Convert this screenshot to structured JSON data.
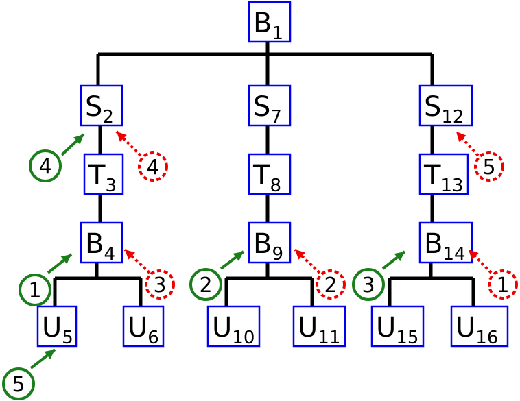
{
  "colors": {
    "node_border": "#0000ee",
    "edge": "#000000",
    "green_marker": "#1a7f1a",
    "red_marker": "#ee0000"
  },
  "nodes": [
    {
      "id": "B1",
      "main": "B",
      "sub": "1"
    },
    {
      "id": "S2",
      "main": "S",
      "sub": "2"
    },
    {
      "id": "S7",
      "main": "S",
      "sub": "7"
    },
    {
      "id": "S12",
      "main": "S",
      "sub": "12"
    },
    {
      "id": "T3",
      "main": "T",
      "sub": "3"
    },
    {
      "id": "T8",
      "main": "T",
      "sub": "8"
    },
    {
      "id": "T13",
      "main": "T",
      "sub": "13"
    },
    {
      "id": "B4",
      "main": "B",
      "sub": "4"
    },
    {
      "id": "B9",
      "main": "B",
      "sub": "9"
    },
    {
      "id": "B14",
      "main": "B",
      "sub": "14"
    },
    {
      "id": "U5",
      "main": "U",
      "sub": "5"
    },
    {
      "id": "U6",
      "main": "U",
      "sub": "6"
    },
    {
      "id": "U10",
      "main": "U",
      "sub": "10"
    },
    {
      "id": "U11",
      "main": "U",
      "sub": "11"
    },
    {
      "id": "U15",
      "main": "U",
      "sub": "15"
    },
    {
      "id": "U16",
      "main": "U",
      "sub": "16"
    }
  ],
  "green_markers": [
    {
      "label": "4",
      "target": "S2"
    },
    {
      "label": "1",
      "target": "B4"
    },
    {
      "label": "5",
      "target": "U5"
    },
    {
      "label": "2",
      "target": "B9"
    },
    {
      "label": "3",
      "target": "B14"
    }
  ],
  "red_markers": [
    {
      "label": "4",
      "target": "S2"
    },
    {
      "label": "3",
      "target": "B4"
    },
    {
      "label": "2",
      "target": "B9"
    },
    {
      "label": "5",
      "target": "S12"
    },
    {
      "label": "1",
      "target": "B14"
    }
  ]
}
